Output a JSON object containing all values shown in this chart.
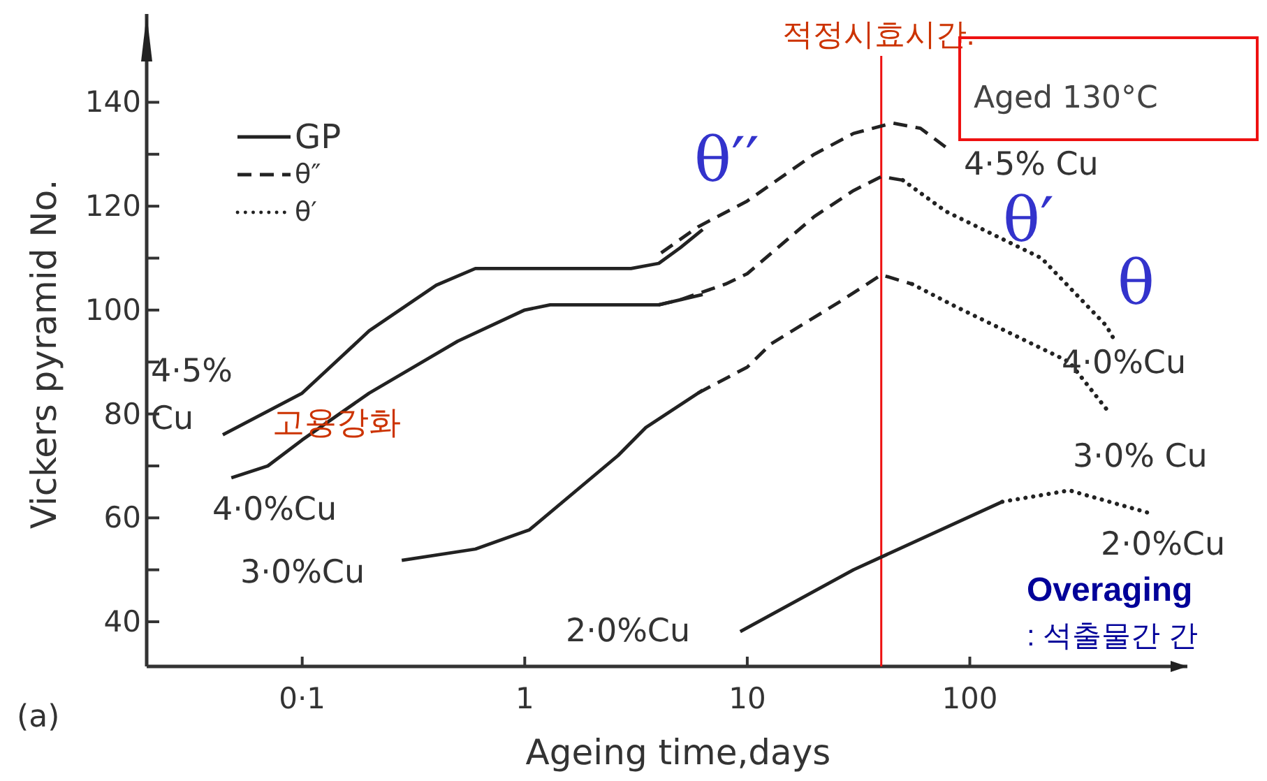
{
  "chart_data": {
    "type": "line",
    "xlabel": "Ageing time,days",
    "ylabel": "Vickers pyramid No.",
    "log": "x",
    "xlim": [
      0.02,
      950
    ],
    "ylim": [
      31.4,
      157
    ],
    "xticks": [
      {
        "value": 0.1,
        "label": "0·1"
      },
      1,
      10,
      100
    ],
    "yticks": [
      40,
      {
        "value": 50,
        "label": null
      },
      60,
      {
        "value": 70,
        "label": null
      },
      80,
      {
        "value": 90,
        "label": null
      },
      100,
      {
        "value": 110,
        "label": null
      },
      120,
      {
        "value": 130,
        "label": null
      },
      140
    ],
    "grid": false,
    "legend": "top left",
    "series": [
      {
        "name": "GP",
        "color": "#222222",
        "line_style": "solid",
        "x": [
          0.044,
          0.1,
          0.2,
          0.4,
          0.6,
          1,
          3,
          4,
          5,
          6.3
        ],
        "values": [
          76,
          84,
          96,
          104.8,
          108,
          108,
          108,
          109,
          112,
          115.5
        ]
      },
      {
        "color": "#222222",
        "line_style": "solid",
        "x": [
          0.048,
          0.07,
          0.1,
          0.2,
          0.5,
          1,
          1.3,
          4,
          6.3
        ],
        "values": [
          67.7,
          70,
          75,
          84,
          94,
          100,
          101,
          101,
          103
        ]
      },
      {
        "color": "#222222",
        "line_style": "solid",
        "x": [
          0.28,
          0.6,
          1.05,
          2.63,
          3.5,
          6.3
        ],
        "values": [
          51.8,
          54,
          57.7,
          72,
          77.4,
          84.6
        ]
      },
      {
        "color": "#222222",
        "line_style": "solid",
        "x": [
          9.3,
          30,
          140
        ],
        "values": [
          38.1,
          50,
          63.1
        ]
      },
      {
        "name": "θ″",
        "color": "#222222",
        "line_style": "dashed",
        "x": [
          4.1,
          6,
          10,
          20,
          30,
          45,
          60,
          80
        ],
        "values": [
          111,
          116,
          121,
          130,
          134,
          136,
          135,
          131
        ]
      },
      {
        "color": "#222222",
        "line_style": "dashed",
        "x": [
          4,
          5,
          8,
          10,
          20,
          30,
          40,
          50
        ],
        "values": [
          101,
          102,
          105,
          107,
          118,
          123,
          125.7,
          125
        ]
      },
      {
        "color": "#222222",
        "line_style": "dashed",
        "x": [
          6,
          10,
          12.8,
          26,
          40,
          55
        ],
        "values": [
          84,
          89,
          93.5,
          101.6,
          106.8,
          105
        ]
      },
      {
        "name": "θ′",
        "color": "#222222",
        "line_style": "dotted",
        "x": [
          50,
          78,
          210,
          410,
          450
        ],
        "values": [
          125,
          119,
          110,
          97,
          94
        ]
      },
      {
        "color": "#222222",
        "line_style": "dotted",
        "x": [
          55,
          86,
          280,
          410,
          430
        ],
        "values": [
          105,
          100.7,
          90,
          81,
          80
        ]
      },
      {
        "color": "#222222",
        "line_style": "dotted",
        "x": [
          140,
          280,
          630
        ],
        "values": [
          63.1,
          65.3,
          61
        ]
      }
    ],
    "ref_lines": [
      {
        "axis": "x",
        "value": 40,
        "label": "적정시효시간.",
        "color": "#ee1111",
        "line_style": "solid"
      }
    ],
    "annotations": [
      "4·5%\nCu",
      "4·0%Cu",
      "3·0%Cu",
      "2·0%Cu",
      "4·5% Cu",
      "4·0%Cu",
      "3·0% Cu",
      "2·0%Cu",
      "θ′′",
      "θ′",
      "θ",
      "Aged 130°C",
      "고용강화",
      "Overaging",
      ": 석출물간 간",
      "(a)"
    ]
  }
}
